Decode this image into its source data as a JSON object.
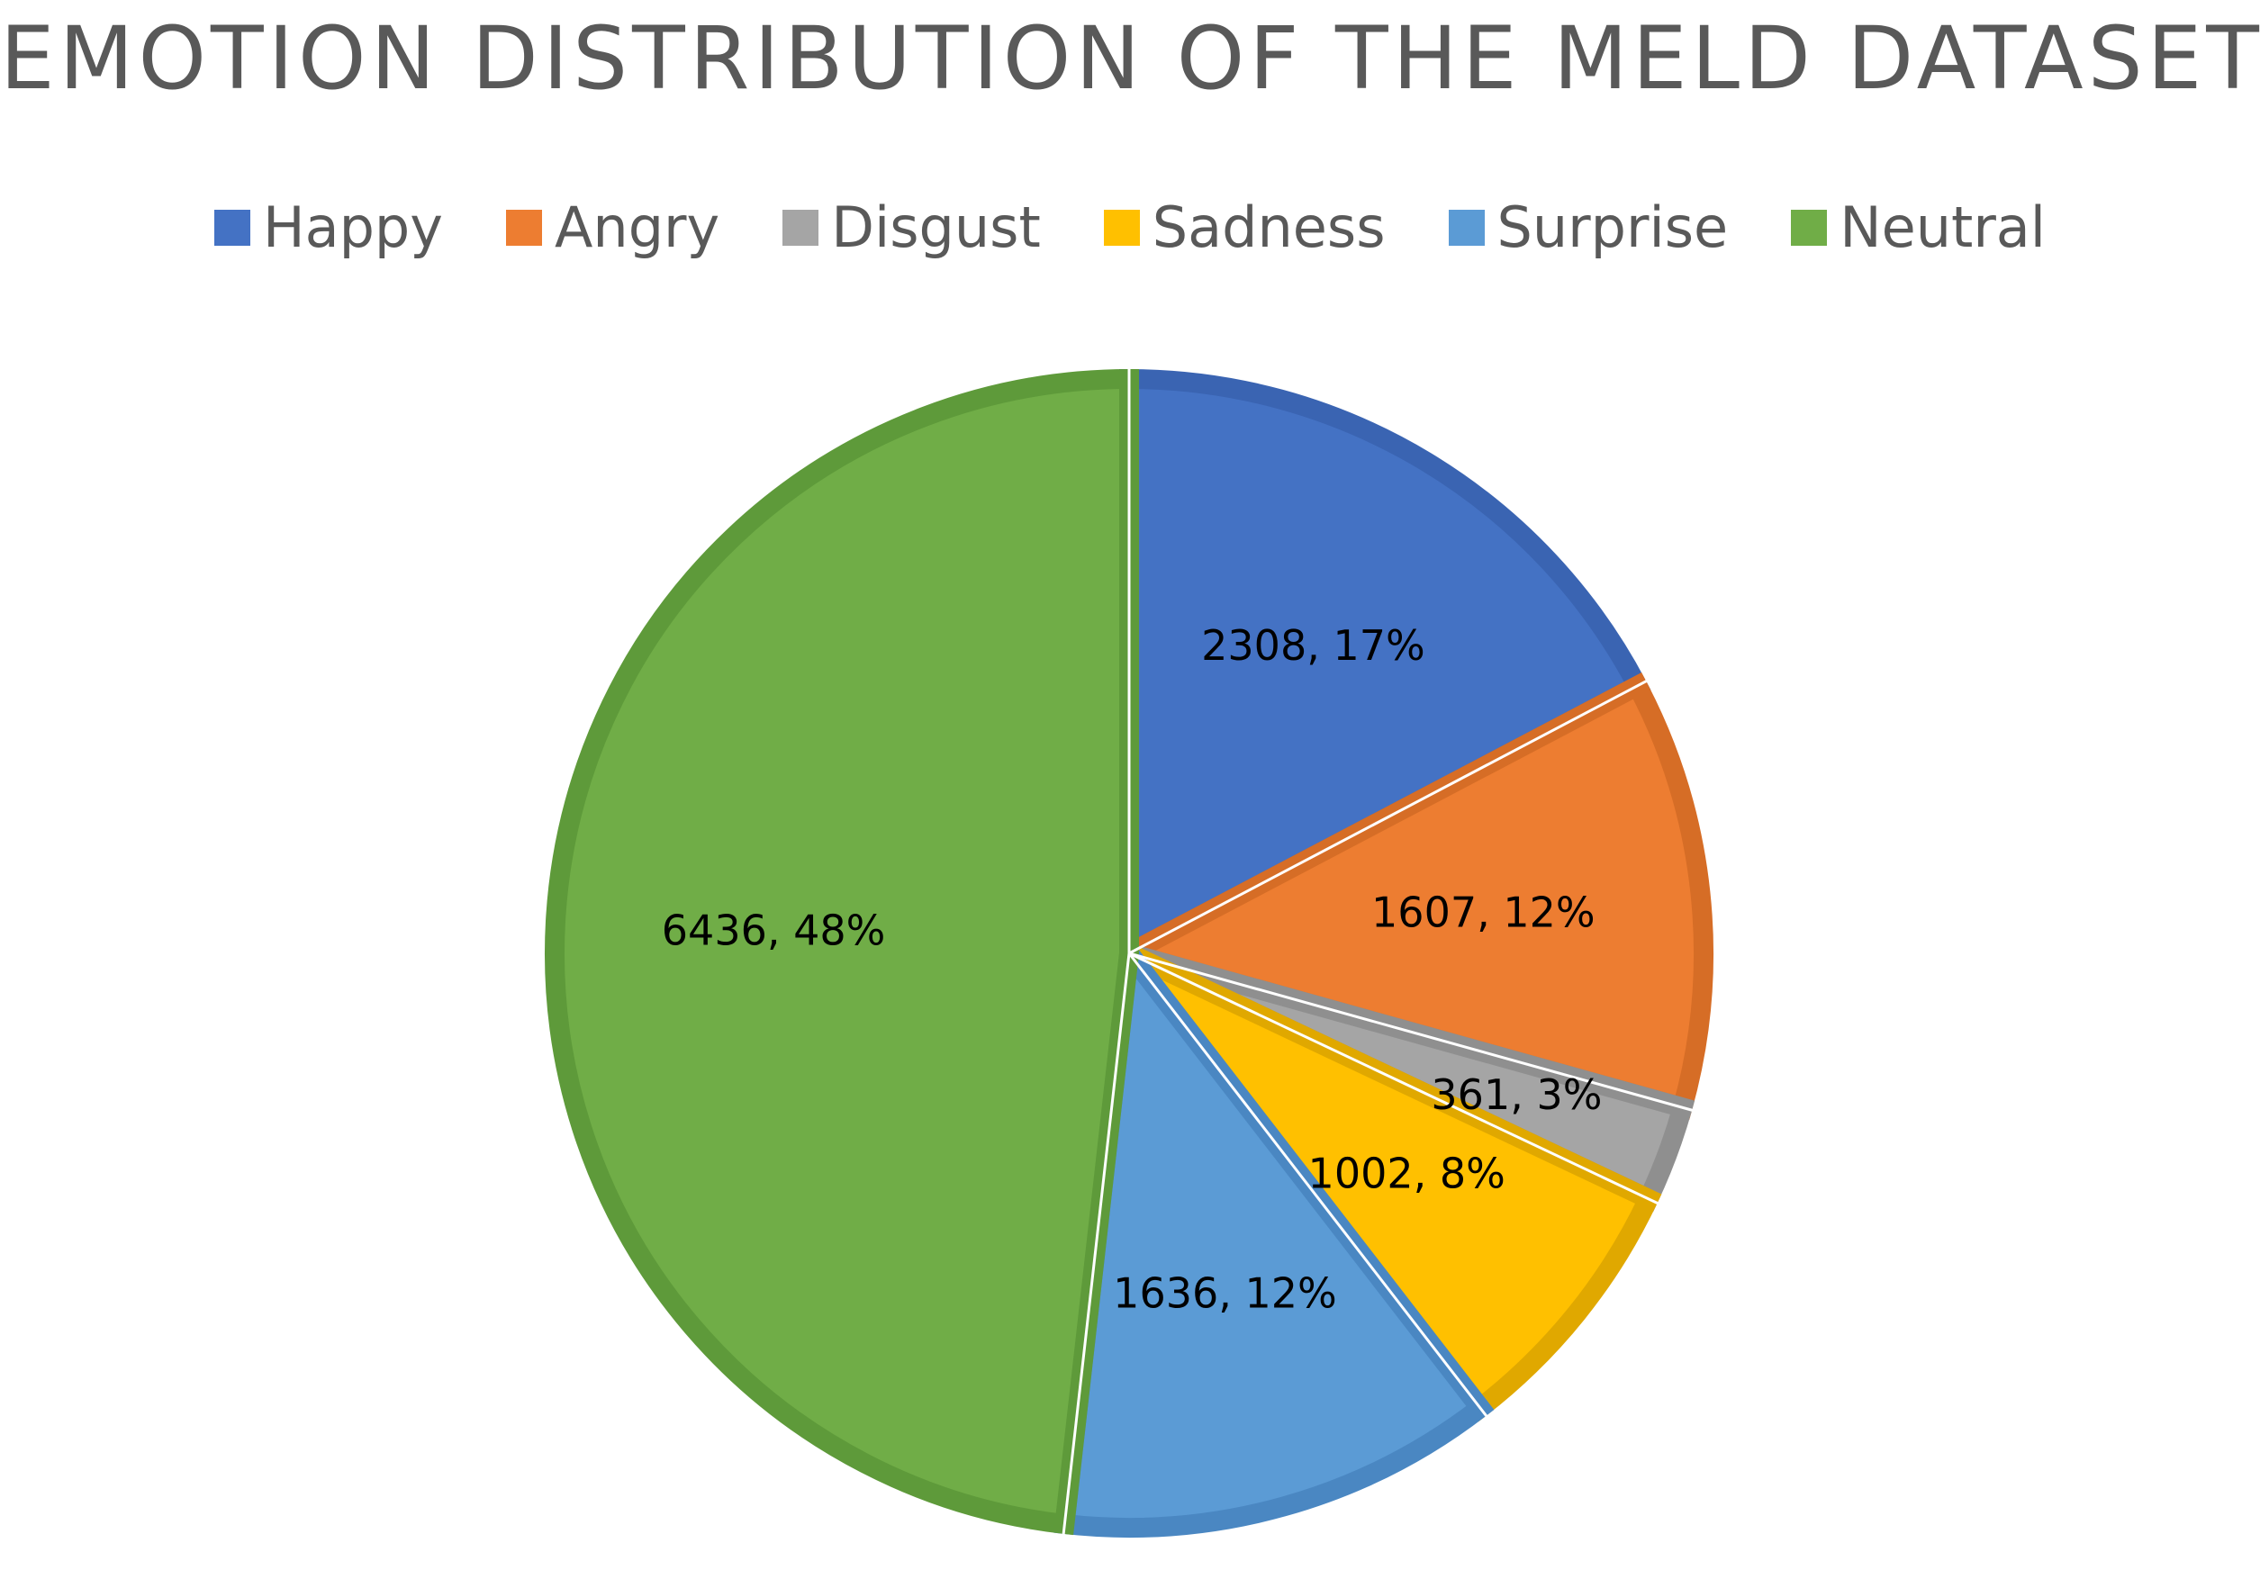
{
  "chart_data": {
    "type": "pie",
    "title": "EMOTION DISTRIBUTION OF THE MELD DATASET",
    "legend_position": "top",
    "slices": [
      {
        "name": "Happy",
        "value": 2308,
        "percent": "17%",
        "label": "2308, 17%",
        "color": "#4472C4",
        "edge": "#3A64B2"
      },
      {
        "name": "Angry",
        "value": 1607,
        "percent": "12%",
        "label": "1607, 12%",
        "color": "#ED7D31",
        "edge": "#D66D26"
      },
      {
        "name": "Disgust",
        "value": 361,
        "percent": "3%",
        "label": "361, 3%",
        "color": "#A5A5A5",
        "edge": "#8F8F8F"
      },
      {
        "name": "Sadness",
        "value": 1002,
        "percent": "8%",
        "label": "1002, 8%",
        "color": "#FFC000",
        "edge": "#E0A800"
      },
      {
        "name": "Surprise",
        "value": 1636,
        "percent": "12%",
        "label": "1636, 12%",
        "color": "#5B9BD5",
        "edge": "#4A87C2"
      },
      {
        "name": "Neutral",
        "value": 6436,
        "percent": "48%",
        "label": "6436, 48%",
        "color": "#70AD47",
        "edge": "#5E9A3A"
      }
    ]
  }
}
